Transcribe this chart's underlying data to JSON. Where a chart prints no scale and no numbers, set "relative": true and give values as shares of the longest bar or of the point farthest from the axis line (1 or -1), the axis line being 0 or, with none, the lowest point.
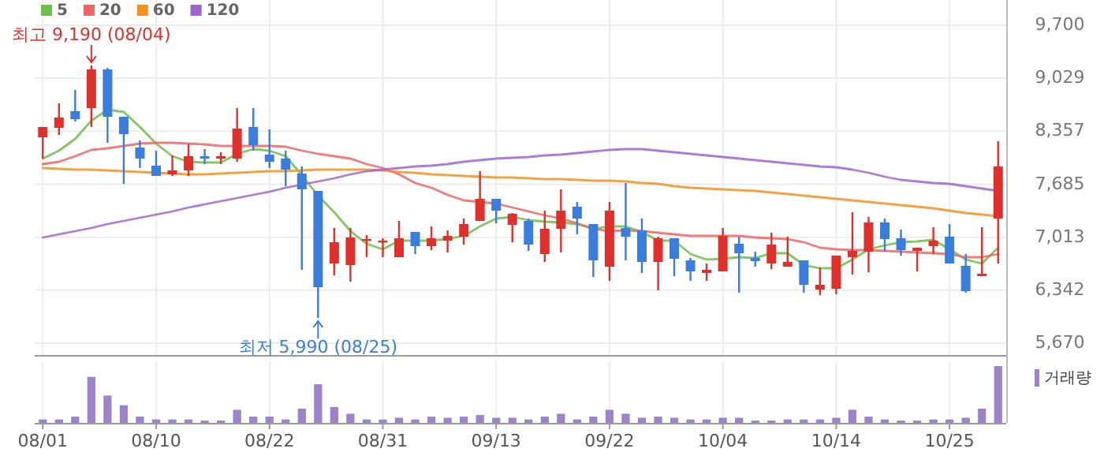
{
  "chart_data": [
    {
      "type": "candlestick",
      "categories": [
        null,
        null,
        null,
        null,
        null,
        null,
        null,
        null,
        null,
        null,
        null,
        null,
        null,
        null,
        null,
        null,
        null,
        null,
        null,
        null,
        null,
        null,
        null,
        null,
        null,
        null,
        null,
        null,
        null,
        null,
        null,
        null,
        null,
        null,
        null,
        null,
        null,
        null,
        null,
        null,
        null,
        null,
        null,
        null,
        null,
        null,
        null,
        null,
        null,
        null,
        null,
        null,
        null,
        null,
        null,
        null,
        null,
        null,
        null,
        null
      ],
      "ohlc": [
        [
          8280,
          8410,
          8010,
          8410
        ],
        [
          8400,
          8710,
          8310,
          8530
        ],
        [
          8610,
          8880,
          8480,
          8510
        ],
        [
          8650,
          9190,
          8410,
          9140
        ],
        [
          9140,
          9160,
          8210,
          8540
        ],
        [
          8540,
          8540,
          7690,
          8320
        ],
        [
          8150,
          8240,
          7890,
          8010
        ],
        [
          7920,
          8110,
          7790,
          7790
        ],
        [
          7810,
          8050,
          7790,
          7860
        ],
        [
          7860,
          8200,
          7790,
          8040
        ],
        [
          8040,
          8130,
          7940,
          8010
        ],
        [
          8010,
          8090,
          7940,
          8040
        ],
        [
          8010,
          8650,
          7970,
          8390
        ],
        [
          8410,
          8650,
          8110,
          8180
        ],
        [
          8060,
          8380,
          7890,
          7970
        ],
        [
          8010,
          8110,
          7660,
          7870
        ],
        [
          7820,
          7910,
          6600,
          7620
        ],
        [
          7600,
          7600,
          5990,
          6380
        ],
        [
          6680,
          7130,
          6530,
          6950
        ],
        [
          6660,
          7130,
          6450,
          7010
        ],
        [
          6970,
          7040,
          6760,
          6990
        ],
        [
          6960,
          7000,
          6760,
          6970
        ],
        [
          6760,
          7220,
          6760,
          7000
        ],
        [
          7080,
          7080,
          6800,
          6900
        ],
        [
          6900,
          7150,
          6850,
          7000
        ],
        [
          6970,
          7100,
          6820,
          7030
        ],
        [
          7020,
          7250,
          6920,
          7180
        ],
        [
          7220,
          7850,
          7220,
          7500
        ],
        [
          7500,
          7500,
          7190,
          7350
        ],
        [
          7170,
          7320,
          6950,
          7310
        ],
        [
          7220,
          7250,
          6840,
          6920
        ],
        [
          6800,
          7350,
          6700,
          7120
        ],
        [
          7120,
          7620,
          6820,
          7350
        ],
        [
          7400,
          7460,
          7050,
          7250
        ],
        [
          7180,
          7180,
          6510,
          6720
        ],
        [
          6640,
          7460,
          6460,
          7350
        ],
        [
          7130,
          7700,
          6720,
          7020
        ],
        [
          7100,
          7250,
          6560,
          6700
        ],
        [
          6700,
          7020,
          6340,
          7000
        ],
        [
          7000,
          7000,
          6520,
          6740
        ],
        [
          6720,
          6750,
          6460,
          6580
        ],
        [
          6560,
          6680,
          6460,
          6600
        ],
        [
          6580,
          7130,
          6580,
          7030
        ],
        [
          6930,
          7020,
          6310,
          6810
        ],
        [
          6750,
          6830,
          6640,
          6710
        ],
        [
          6680,
          7070,
          6610,
          6920
        ],
        [
          6640,
          7020,
          6640,
          6700
        ],
        [
          6720,
          6720,
          6310,
          6410
        ],
        [
          6350,
          6630,
          6280,
          6410
        ],
        [
          6360,
          6780,
          6290,
          6780
        ],
        [
          6760,
          7330,
          6540,
          6840
        ],
        [
          6830,
          7270,
          6570,
          7200
        ],
        [
          7200,
          7250,
          6830,
          6990
        ],
        [
          7000,
          7110,
          6780,
          6850
        ],
        [
          6840,
          6880,
          6580,
          6880
        ],
        [
          6900,
          7140,
          6800,
          6970
        ],
        [
          7020,
          7180,
          6680,
          6680
        ],
        [
          6650,
          6800,
          6310,
          6330
        ],
        [
          6520,
          7140,
          6520,
          6550
        ],
        [
          7250,
          8230,
          6680,
          7910
        ]
      ],
      "colors": [
        "#e0302c",
        "#e0302c",
        "#3a7ddc",
        "#e0302c",
        "#3a7ddc",
        "#3a7ddc",
        "#3a7ddc",
        "#3a7ddc",
        "#e0302c",
        "#e0302c",
        "#3a7ddc",
        "#e0302c",
        "#e0302c",
        "#3a7ddc",
        "#3a7ddc",
        "#3a7ddc",
        "#3a7ddc",
        "#3a7ddc",
        "#e0302c",
        "#e0302c",
        "#e0302c",
        "#e0302c",
        "#e0302c",
        "#3a7ddc",
        "#e0302c",
        "#e0302c",
        "#e0302c",
        "#e0302c",
        "#3a7ddc",
        "#e0302c",
        "#3a7ddc",
        "#e0302c",
        "#e0302c",
        "#3a7ddc",
        "#3a7ddc",
        "#e0302c",
        "#3a7ddc",
        "#3a7ddc",
        "#e0302c",
        "#3a7ddc",
        "#3a7ddc",
        "#e0302c",
        "#e0302c",
        "#3a7ddc",
        "#3a7ddc",
        "#e0302c",
        "#e0302c",
        "#3a7ddc",
        "#e0302c",
        "#e0302c",
        "#e0302c",
        "#e0302c",
        "#3a7ddc",
        "#3a7ddc",
        "#e0302c",
        "#e0302c",
        "#3a7ddc",
        "#3a7ddc",
        "#e0302c",
        "#e0302c"
      ],
      "series": [
        {
          "name": "5",
          "type": "line",
          "color": "#6cc04a",
          "values": [
            8010,
            8110,
            8260,
            8490,
            8630,
            8600,
            8410,
            8200,
            8040,
            7970,
            7960,
            7960,
            8070,
            8130,
            8110,
            8040,
            7800,
            7540,
            7330,
            7090,
            6930,
            6860,
            6970,
            6970,
            6970,
            6990,
            7030,
            7150,
            7250,
            7270,
            7230,
            7210,
            7200,
            7180,
            7120,
            7150,
            7150,
            7080,
            6970,
            6970,
            6800,
            6730,
            6740,
            6760,
            6750,
            6810,
            6810,
            6660,
            6620,
            6620,
            6730,
            6860,
            6910,
            6950,
            6960,
            6980,
            6860,
            6730,
            6680,
            6880
          ]
        },
        {
          "name": "20",
          "type": "line",
          "color": "#f06464",
          "values": [
            7940,
            7970,
            8040,
            8120,
            8140,
            8170,
            8200,
            8210,
            8210,
            8200,
            8190,
            8170,
            8170,
            8170,
            8170,
            8160,
            8110,
            8070,
            8040,
            8010,
            7940,
            7890,
            7810,
            7700,
            7640,
            7550,
            7480,
            7460,
            7440,
            7390,
            7340,
            7290,
            7250,
            7190,
            7120,
            7090,
            7100,
            7090,
            7070,
            7050,
            7030,
            7030,
            7030,
            7030,
            7010,
            7000,
            6990,
            6950,
            6880,
            6860,
            6850,
            6850,
            6840,
            6830,
            6820,
            6810,
            6800,
            6760,
            6760,
            6800
          ]
        },
        {
          "name": "60",
          "type": "line",
          "color": "#f5901e",
          "values": [
            7890,
            7880,
            7870,
            7870,
            7860,
            7850,
            7840,
            7830,
            7820,
            7810,
            7810,
            7820,
            7830,
            7840,
            7850,
            7850,
            7860,
            7870,
            7870,
            7870,
            7870,
            7860,
            7840,
            7830,
            7810,
            7800,
            7790,
            7780,
            7770,
            7770,
            7760,
            7750,
            7750,
            7740,
            7730,
            7730,
            7720,
            7700,
            7690,
            7660,
            7640,
            7630,
            7620,
            7610,
            7600,
            7580,
            7560,
            7540,
            7520,
            7500,
            7480,
            7460,
            7440,
            7420,
            7400,
            7380,
            7350,
            7320,
            7300,
            7280
          ]
        },
        {
          "name": "120",
          "type": "line",
          "color": "#a064d2",
          "values": [
            7010,
            7050,
            7090,
            7130,
            7180,
            7220,
            7260,
            7300,
            7340,
            7390,
            7430,
            7470,
            7510,
            7550,
            7590,
            7640,
            7680,
            7720,
            7760,
            7810,
            7850,
            7870,
            7890,
            7910,
            7920,
            7940,
            7970,
            7990,
            8010,
            8020,
            8030,
            8050,
            8060,
            8080,
            8100,
            8120,
            8130,
            8130,
            8110,
            8090,
            8070,
            8050,
            8030,
            8010,
            7990,
            7970,
            7950,
            7930,
            7910,
            7900,
            7870,
            7830,
            7780,
            7740,
            7720,
            7700,
            7690,
            7660,
            7630,
            7600
          ]
        }
      ],
      "ylim": [
        5520,
        9700
      ],
      "yticks": [
        {
          "value": 5670,
          "label": "5,670"
        },
        {
          "value": 6342,
          "label": "6,342"
        },
        {
          "value": 7013,
          "label": "7,013"
        },
        {
          "value": 7685,
          "label": "7,685"
        },
        {
          "value": 8357,
          "label": "8,357"
        },
        {
          "value": 9029,
          "label": "9,029"
        },
        {
          "value": 9700,
          "label": "9,700"
        }
      ],
      "grid": true,
      "legend": "top left",
      "tick_labels": "y",
      "annotations": [
        {
          "text": "최고 9,190 (08/04)",
          "y": 9190
        },
        {
          "text": "최저 5,990 (08/25)",
          "y": 5990
        }
      ]
    },
    {
      "type": "bar",
      "categories": [
        "08/01",
        null,
        null,
        null,
        null,
        null,
        null,
        "08/10",
        null,
        null,
        null,
        null,
        null,
        null,
        "08/22",
        null,
        null,
        null,
        null,
        null,
        null,
        "08/31",
        null,
        null,
        null,
        null,
        null,
        null,
        "09/13",
        null,
        null,
        null,
        null,
        null,
        null,
        "09/22",
        null,
        null,
        null,
        null,
        null,
        null,
        "10/04",
        null,
        null,
        null,
        null,
        null,
        null,
        "10/14",
        null,
        null,
        null,
        null,
        null,
        null,
        "10/25",
        null,
        null,
        null
      ],
      "relative": true,
      "series": [
        {
          "name": "거래량",
          "color": "#9b84c9",
          "values": [
            0.06,
            0.06,
            0.11,
            0.81,
            0.48,
            0.31,
            0.11,
            0.06,
            0.06,
            0.06,
            0.04,
            0.04,
            0.23,
            0.11,
            0.11,
            0.06,
            0.25,
            0.68,
            0.28,
            0.16,
            0.06,
            0.06,
            0.09,
            0.06,
            0.11,
            0.09,
            0.11,
            0.14,
            0.09,
            0.09,
            0.06,
            0.11,
            0.16,
            0.06,
            0.11,
            0.23,
            0.16,
            0.09,
            0.11,
            0.09,
            0.06,
            0.06,
            0.09,
            0.09,
            0.04,
            0.04,
            0.06,
            0.06,
            0.06,
            0.09,
            0.23,
            0.11,
            0.06,
            0.04,
            0.04,
            0.06,
            0.06,
            0.09,
            0.25,
            1
          ]
        }
      ],
      "grid": "x",
      "legend": "top right",
      "tick_labels": "x"
    }
  ]
}
